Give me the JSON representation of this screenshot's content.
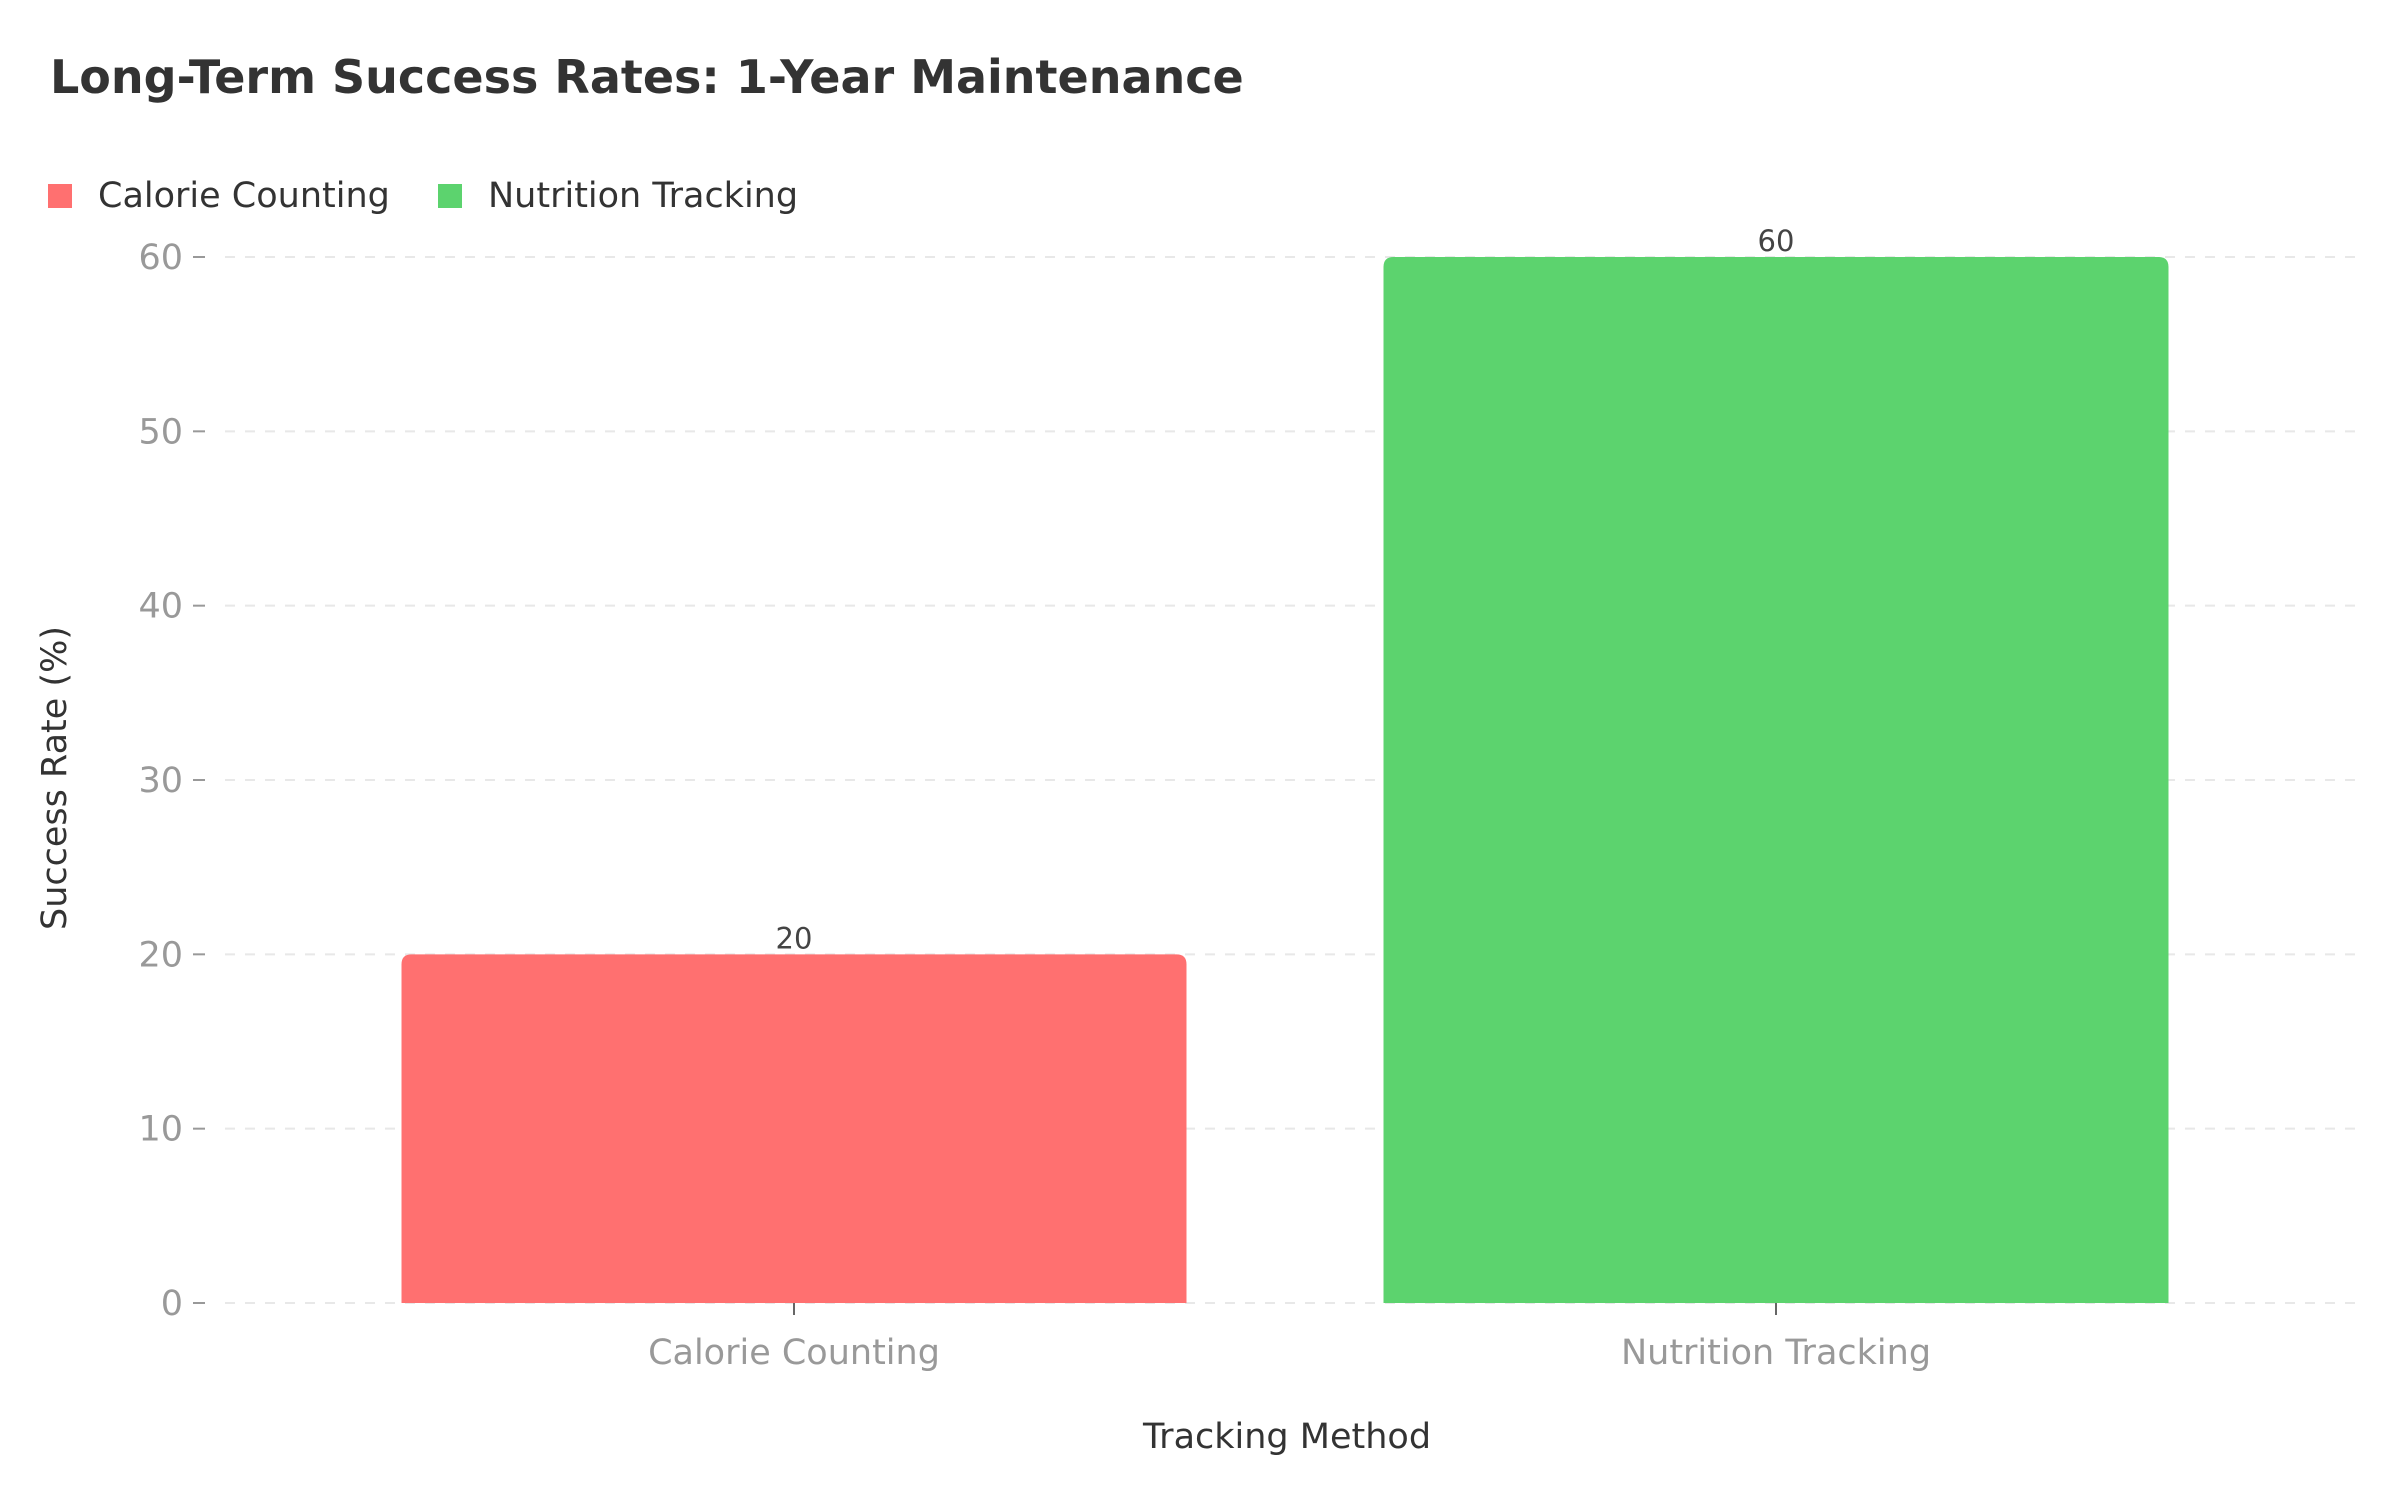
{
  "chart_data": {
    "type": "bar",
    "title": "Long-Term Success Rates: 1-Year Maintenance",
    "xlabel": "Tracking Method",
    "ylabel": "Success Rate (%)",
    "categories": [
      "Calorie Counting",
      "Nutrition Tracking"
    ],
    "values": [
      20,
      60
    ],
    "data_labels": [
      "20",
      "60"
    ],
    "colors": [
      "#ff7070",
      "#5cd36e"
    ],
    "ylim": [
      0,
      60
    ],
    "yticks": [
      0,
      10,
      20,
      30,
      40,
      50,
      60
    ],
    "grid": true,
    "legend_position": "top-left",
    "legend": [
      {
        "label": "Calorie Counting",
        "color": "#ff7070"
      },
      {
        "label": "Nutrition Tracking",
        "color": "#5cd36e"
      }
    ],
    "colors_theme": {
      "title": "#333333",
      "axis_label": "#333333",
      "tick_label": "#999999",
      "grid": "#e8e8e8",
      "data_label": "#444444"
    }
  }
}
